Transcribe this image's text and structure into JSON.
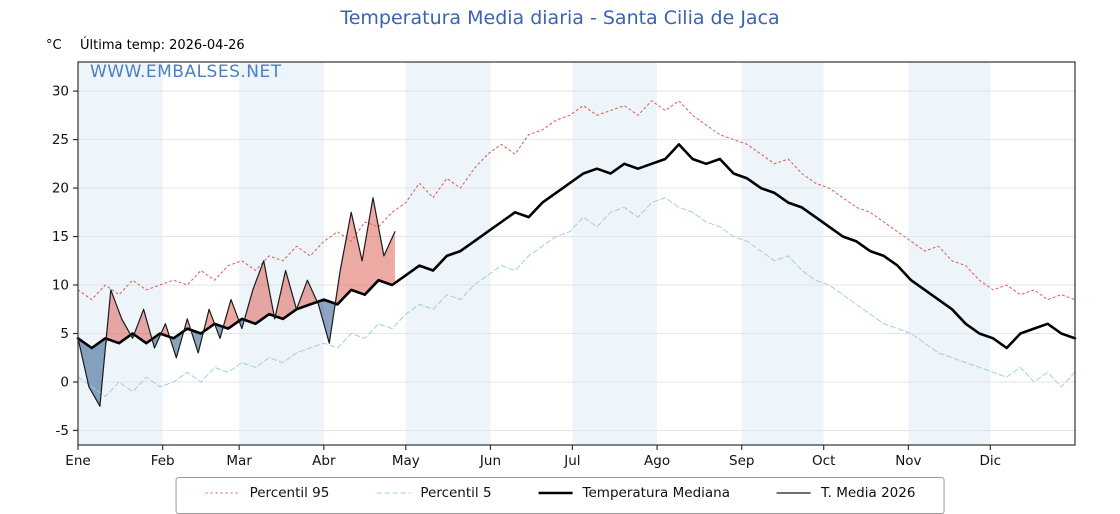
{
  "header": {
    "title": "Temperatura Media diaria - Santa Cilia de Jaca",
    "unit_label": "°C",
    "last_temp": "Última temp: 2026-04-26"
  },
  "watermark": "WWW.EMBALSES.NET",
  "colors": {
    "title": "#3a64ae",
    "watermark": "#4a80c4",
    "axis": "#333333",
    "grid": "#e4e4e4",
    "band": "#edf4fa",
    "fill_above": "rgba(220,85,75,0.5)",
    "fill_below": "rgba(75,115,160,0.65)"
  },
  "chart_data": {
    "type": "line",
    "title": "Temperatura Media diaria - Santa Cilia de Jaca",
    "xlabel": "",
    "ylabel": "°C",
    "x_unit": "day_of_year",
    "days_in_year": 365,
    "months": [
      "Ene",
      "Feb",
      "Mar",
      "Abr",
      "May",
      "Jun",
      "Jul",
      "Ago",
      "Sep",
      "Oct",
      "Nov",
      "Dic"
    ],
    "month_start_days": [
      0,
      31,
      59,
      90,
      120,
      151,
      181,
      212,
      243,
      273,
      304,
      334
    ],
    "shaded_months": [
      0,
      2,
      4,
      6,
      8,
      10
    ],
    "ylim": [
      -6.5,
      33
    ],
    "yticks": [
      -5,
      0,
      5,
      10,
      15,
      20,
      25,
      30
    ],
    "grid": true,
    "legend_position": "bottom",
    "series": [
      {
        "name": "Percentil 95",
        "color": "#dc5a55",
        "width": 1,
        "dash": "2 3",
        "x_start": 0,
        "x_step": 5,
        "values": [
          9.5,
          8.5,
          10,
          9,
          10.5,
          9.5,
          10,
          10.5,
          10,
          11.5,
          10.5,
          12,
          12.5,
          11.5,
          13,
          12.5,
          14,
          13,
          14.5,
          15.5,
          14.5,
          16.5,
          16,
          17.5,
          18.5,
          20.5,
          19,
          21,
          20,
          22,
          23.5,
          24.5,
          23.5,
          25.5,
          26,
          27,
          27.5,
          28.5,
          27.5,
          28,
          28.5,
          27.5,
          29,
          28,
          29,
          27.5,
          26.5,
          25.5,
          25,
          24.5,
          23.5,
          22.5,
          23,
          21.5,
          20.5,
          20,
          19,
          18,
          17.5,
          16.5,
          15.5,
          14.5,
          13.5,
          14,
          12.5,
          12,
          10.5,
          9.5,
          10,
          9,
          9.5,
          8.5,
          9,
          8.5
        ]
      },
      {
        "name": "Percentil 5",
        "color": "#9fcfe6",
        "width": 1,
        "dash": "5 3",
        "x_start": 0,
        "x_step": 5,
        "values": [
          0.5,
          -0.5,
          -1.5,
          0,
          -1,
          0.5,
          -0.5,
          0,
          1,
          0,
          1.5,
          1,
          2,
          1.5,
          2.5,
          2,
          3,
          3.5,
          4,
          3.5,
          5,
          4.5,
          6,
          5.5,
          7,
          8,
          7.5,
          9,
          8.5,
          10,
          11,
          12,
          11.5,
          13,
          14,
          15,
          15.5,
          17,
          16,
          17.5,
          18,
          17,
          18.5,
          19,
          18,
          17.5,
          16.5,
          16,
          15,
          14.5,
          13.5,
          12.5,
          13,
          11.5,
          10.5,
          10,
          9,
          8,
          7,
          6,
          5.5,
          5,
          4,
          3,
          2.5,
          2,
          1.5,
          1,
          0.5,
          1.5,
          0,
          1,
          -0.5,
          1
        ]
      },
      {
        "name": "Temperatura Mediana",
        "color": "#000000",
        "width": 2.6,
        "dash": "",
        "x_start": 0,
        "x_step": 5,
        "values": [
          4.5,
          3.5,
          4.5,
          4,
          5,
          4,
          5,
          4.5,
          5.5,
          5,
          6,
          5.5,
          6.5,
          6,
          7,
          6.5,
          7.5,
          8,
          8.5,
          8,
          9.5,
          9,
          10.5,
          10,
          11,
          12,
          11.5,
          13,
          13.5,
          14.5,
          15.5,
          16.5,
          17.5,
          17,
          18.5,
          19.5,
          20.5,
          21.5,
          22,
          21.5,
          22.5,
          22,
          22.5,
          23,
          24.5,
          23,
          22.5,
          23,
          21.5,
          21,
          20,
          19.5,
          18.5,
          18,
          17,
          16,
          15,
          14.5,
          13.5,
          13,
          12,
          10.5,
          9.5,
          8.5,
          7.5,
          6,
          5,
          4.5,
          3.5,
          5,
          5.5,
          6,
          5,
          4.5
        ]
      },
      {
        "name": "T. Media 2026",
        "color": "#1a1a1a",
        "width": 1.2,
        "dash": "",
        "x_start": 0,
        "x_step": 4,
        "values": [
          4.5,
          -0.5,
          -2.5,
          9.5,
          6.5,
          4.5,
          7.5,
          3.5,
          6,
          2.5,
          6.5,
          3,
          7.5,
          4.5,
          8.5,
          5.5,
          9.5,
          12.5,
          6.5,
          11.5,
          7.5,
          10.5,
          8,
          4,
          11.5,
          17.5,
          12.5,
          19,
          13,
          15.5
        ]
      }
    ],
    "fills": {
      "between": [
        "T. Media 2026",
        "Temperatura Mediana"
      ],
      "above_color": "rgba(220,85,75,0.5)",
      "below_color": "rgba(75,115,160,0.65)"
    }
  }
}
